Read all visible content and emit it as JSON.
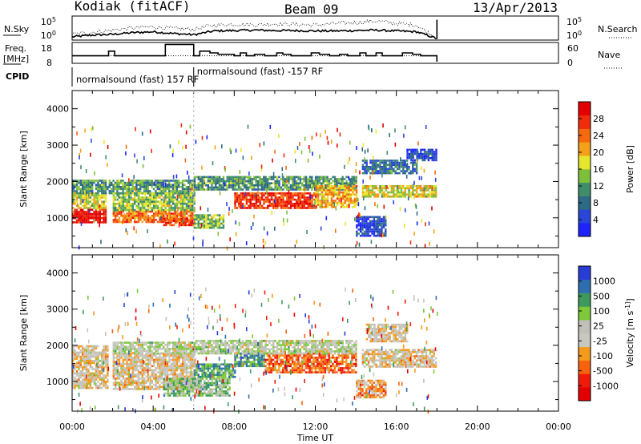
{
  "header": {
    "station": "Kodiak (fitACF)",
    "beam": "Beam 09",
    "date": "13/Apr/2013"
  },
  "colors": {
    "power_scale": [
      "#1e22ff",
      "#2a46d8",
      "#2d6a84",
      "#3f8d6a",
      "#7fbf3b",
      "#e6e62e",
      "#f4a018",
      "#f56a0e",
      "#ef2c0c",
      "#e40000"
    ],
    "velocity_scale": [
      "#e40000",
      "#f01a0a",
      "#f6620e",
      "#f59a1c",
      "#c8c8c0",
      "#c0c0b8",
      "#7ec93a",
      "#3e9a5c",
      "#2d6fae",
      "#2a3cd6"
    ]
  },
  "chart_data": [
    {
      "type": "line",
      "panel": "noise",
      "left_label": "N.Sky",
      "right_label": "N.Search",
      "left_ticks": [
        "10^5",
        "10^0"
      ],
      "right_ticks": [
        "10^5",
        "10^0"
      ],
      "x_range_hours": [
        0,
        24
      ],
      "series_end_hour": 18,
      "series": [
        {
          "style": "solid",
          "x": [
            0,
            1,
            2,
            3,
            4,
            5,
            6,
            7,
            8,
            9,
            10,
            11,
            12,
            13,
            14,
            15,
            16,
            17,
            18
          ],
          "y_log10": [
            0.4,
            0.8,
            1.0,
            1.4,
            1.6,
            1.2,
            0.9,
            1.8,
            1.9,
            2.0,
            1.9,
            1.9,
            1.8,
            1.8,
            1.9,
            2.0,
            1.8,
            1.6,
            0.0
          ]
        },
        {
          "style": "dotted",
          "x": [
            0,
            1,
            2,
            3,
            4,
            5,
            6,
            7,
            8,
            9,
            10,
            11,
            12,
            13,
            14,
            15,
            16,
            17,
            18
          ],
          "y_log10": [
            1.0,
            1.5,
            2.0,
            2.5,
            2.8,
            2.4,
            2.2,
            3.2,
            3.4,
            3.3,
            3.5,
            3.4,
            3.2,
            3.6,
            3.8,
            4.2,
            3.6,
            3.2,
            0.0
          ]
        }
      ]
    },
    {
      "type": "line",
      "panel": "frequency",
      "left_label": "Freq. [MHz]",
      "right_label": "Nave",
      "left_ticks": [
        "18",
        "8"
      ],
      "right_ticks": [
        "60",
        "0"
      ],
      "x_range_hours": [
        0,
        24
      ],
      "freq_y_range": [
        8,
        18
      ],
      "freq_steps": [
        [
          0.0,
          11.4
        ],
        [
          1.8,
          14.0
        ],
        [
          2.1,
          11.4
        ],
        [
          4.6,
          17.8
        ],
        [
          6.0,
          11.4
        ],
        [
          6.3,
          14.0
        ],
        [
          6.8,
          13.0
        ],
        [
          7.2,
          12.2
        ],
        [
          8.0,
          11.4
        ],
        [
          8.3,
          13.0
        ],
        [
          8.6,
          11.4
        ],
        [
          9.0,
          12.2
        ],
        [
          9.5,
          11.4
        ],
        [
          10.1,
          13.0
        ],
        [
          10.4,
          12.2
        ],
        [
          10.8,
          11.4
        ],
        [
          11.8,
          13.0
        ],
        [
          12.2,
          12.2
        ],
        [
          12.7,
          11.4
        ],
        [
          13.2,
          12.2
        ],
        [
          13.6,
          11.4
        ],
        [
          14.2,
          13.0
        ],
        [
          14.5,
          11.4
        ],
        [
          15.0,
          13.0
        ],
        [
          15.3,
          11.4
        ],
        [
          16.3,
          13.0
        ],
        [
          16.8,
          12.2
        ],
        [
          17.2,
          11.4
        ],
        [
          18.0,
          8.0
        ]
      ],
      "nave_level": 20
    },
    {
      "type": "text",
      "panel": "cpid",
      "label": "CPID",
      "segments": [
        {
          "text": "normalsound (fast) 157 RF",
          "start_hour": 0.0
        },
        {
          "text": "normalsound (fast) -157 RF",
          "start_hour": 6.0
        }
      ]
    },
    {
      "type": "heatmap",
      "panel": "power",
      "ylabel": "Slant Range [km]",
      "y_ticks": [
        "1000",
        "2000",
        "3000",
        "4000"
      ],
      "y_range": [
        180,
        4500
      ],
      "x_range_hours": [
        0,
        24
      ],
      "colorbar_label": "Power [dB]",
      "colorbar_ticks": [
        "4",
        "8",
        "12",
        "16",
        "20",
        "24",
        "28"
      ],
      "bands": [
        {
          "hours": [
            0.0,
            1.7
          ],
          "range": [
            850,
            1250
          ],
          "value_level": 9
        },
        {
          "hours": [
            0.0,
            1.7
          ],
          "range": [
            1250,
            1700
          ],
          "value_level": 5
        },
        {
          "hours": [
            0.0,
            6.0
          ],
          "range": [
            1700,
            2050
          ],
          "value_level": 3
        },
        {
          "hours": [
            2.0,
            6.0
          ],
          "range": [
            900,
            1200
          ],
          "value_level": 7
        },
        {
          "hours": [
            2.0,
            6.0
          ],
          "range": [
            1200,
            1700
          ],
          "value_level": 4
        },
        {
          "hours": [
            4.5,
            6.0
          ],
          "range": [
            800,
            1000
          ],
          "value_level": 8
        },
        {
          "hours": [
            6.0,
            7.5
          ],
          "range": [
            700,
            1100
          ],
          "value_level": 4
        },
        {
          "hours": [
            6.0,
            14.0
          ],
          "range": [
            1800,
            2150
          ],
          "value_level": 3
        },
        {
          "hours": [
            8.0,
            12.0
          ],
          "range": [
            1250,
            1700
          ],
          "value_level": 8
        },
        {
          "hours": [
            12.0,
            14.0
          ],
          "range": [
            1300,
            1900
          ],
          "value_level": 6
        },
        {
          "hours": [
            14.0,
            15.5
          ],
          "range": [
            500,
            1050
          ],
          "value_level": 1
        },
        {
          "hours": [
            14.3,
            18.0
          ],
          "range": [
            1600,
            1900
          ],
          "value_level": 5
        },
        {
          "hours": [
            14.3,
            17.0
          ],
          "range": [
            2200,
            2600
          ],
          "value_level": 2
        },
        {
          "hours": [
            16.5,
            18.0
          ],
          "range": [
            2600,
            2900
          ],
          "value_level": 1
        }
      ]
    },
    {
      "type": "heatmap",
      "panel": "velocity",
      "ylabel": "Slant Range [km]",
      "y_ticks": [
        "1000",
        "2000",
        "3000",
        "4000"
      ],
      "y_range": [
        180,
        4500
      ],
      "x_range_hours": [
        0,
        24
      ],
      "xlabel": "Time UT",
      "x_ticks": [
        "00:00",
        "04:00",
        "08:00",
        "12:00",
        "16:00",
        "20:00",
        "00:00"
      ],
      "colorbar_label": "Velocity [m s^-1]",
      "colorbar_ticks": [
        "-1000",
        "-500",
        "-100",
        "-25",
        "25",
        "100",
        "500",
        "1000"
      ],
      "bands": [
        {
          "hours": [
            0.0,
            1.8
          ],
          "range": [
            800,
            2000
          ],
          "value_level": 4
        },
        {
          "hours": [
            2.0,
            6.0
          ],
          "range": [
            800,
            1800
          ],
          "value_level": 4
        },
        {
          "hours": [
            2.0,
            6.0
          ],
          "range": [
            1800,
            2100
          ],
          "value_level": 5
        },
        {
          "hours": [
            4.5,
            7.8
          ],
          "range": [
            600,
            1100
          ],
          "value_level": 6
        },
        {
          "hours": [
            6.0,
            8.0
          ],
          "range": [
            1100,
            1500
          ],
          "value_level": 7
        },
        {
          "hours": [
            8.0,
            9.5
          ],
          "range": [
            1400,
            1800
          ],
          "value_level": 7
        },
        {
          "hours": [
            9.5,
            14.0
          ],
          "range": [
            1250,
            1800
          ],
          "value_level": 2
        },
        {
          "hours": [
            6.0,
            14.0
          ],
          "range": [
            1800,
            2150
          ],
          "value_level": 5
        },
        {
          "hours": [
            14.0,
            15.5
          ],
          "range": [
            550,
            1050
          ],
          "value_level": 3
        },
        {
          "hours": [
            14.3,
            18.0
          ],
          "range": [
            1400,
            1900
          ],
          "value_level": 4
        },
        {
          "hours": [
            14.5,
            16.5
          ],
          "range": [
            2100,
            2600
          ],
          "value_level": 4
        }
      ]
    }
  ]
}
